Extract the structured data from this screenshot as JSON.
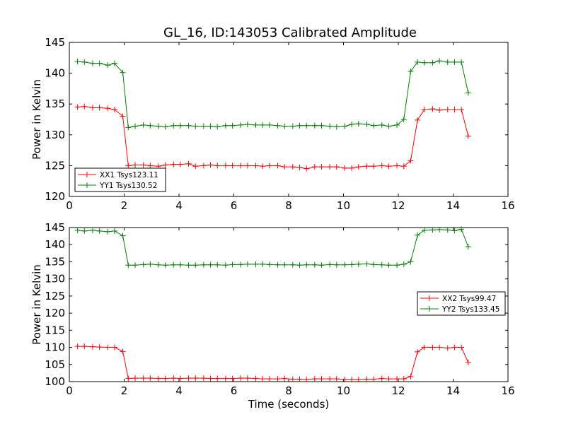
{
  "figure_title": "GL_16, ID:143053 Calibrated Amplitude",
  "chart_data": [
    {
      "type": "line",
      "id": "top",
      "ylabel": "Power in Kelvin",
      "xlabel": "",
      "xlim": [
        0,
        16
      ],
      "ylim": [
        120,
        145
      ],
      "xticks": [
        0,
        2,
        4,
        6,
        8,
        10,
        12,
        14,
        16
      ],
      "yticks": [
        120,
        125,
        130,
        135,
        140,
        145
      ],
      "legend": "lower-left",
      "x": [
        0.3,
        0.55,
        0.85,
        1.1,
        1.4,
        1.65,
        1.95,
        2.15,
        2.4,
        2.7,
        2.95,
        3.25,
        3.5,
        3.8,
        4.05,
        4.35,
        4.6,
        4.9,
        5.15,
        5.4,
        5.7,
        5.95,
        6.25,
        6.5,
        6.8,
        7.05,
        7.3,
        7.6,
        7.85,
        8.15,
        8.4,
        8.65,
        8.95,
        9.2,
        9.5,
        9.75,
        10.05,
        10.3,
        10.55,
        10.85,
        11.1,
        11.4,
        11.65,
        11.95,
        12.2,
        12.45,
        12.7,
        12.95,
        13.25,
        13.5,
        13.8,
        14.05,
        14.3,
        14.55
      ],
      "series": [
        {
          "name": "XX1 Tsys123.11",
          "color": "#ff0000",
          "values": [
            134.5,
            134.6,
            134.4,
            134.4,
            134.3,
            134.1,
            133.0,
            125.0,
            125.1,
            125.1,
            125.0,
            124.9,
            125.1,
            125.2,
            125.2,
            125.3,
            124.9,
            125.0,
            125.1,
            125.0,
            125.0,
            125.0,
            125.0,
            125.0,
            125.0,
            124.9,
            125.0,
            125.0,
            124.8,
            124.8,
            124.7,
            124.5,
            124.8,
            124.8,
            124.8,
            124.8,
            124.6,
            124.6,
            124.8,
            124.9,
            124.9,
            125.0,
            124.9,
            125.0,
            124.9,
            125.8,
            132.4,
            134.1,
            134.2,
            134.0,
            134.1,
            134.1,
            134.1,
            129.8
          ]
        },
        {
          "name": "YY1 Tsys130.52",
          "color": "#008000",
          "values": [
            141.9,
            141.8,
            141.6,
            141.6,
            141.3,
            141.6,
            140.1,
            131.2,
            131.4,
            131.6,
            131.5,
            131.4,
            131.3,
            131.5,
            131.5,
            131.5,
            131.4,
            131.4,
            131.4,
            131.3,
            131.5,
            131.5,
            131.6,
            131.7,
            131.6,
            131.6,
            131.6,
            131.5,
            131.4,
            131.4,
            131.5,
            131.5,
            131.5,
            131.5,
            131.4,
            131.3,
            131.4,
            131.7,
            131.8,
            131.7,
            131.5,
            131.6,
            131.4,
            131.6,
            132.5,
            140.3,
            141.8,
            141.7,
            141.7,
            142.0,
            141.8,
            141.8,
            141.8,
            136.8
          ]
        }
      ]
    },
    {
      "type": "line",
      "id": "bottom",
      "ylabel": "Power in Kelvin",
      "xlabel": "Time (seconds)",
      "xlim": [
        0,
        16
      ],
      "ylim": [
        100,
        145
      ],
      "xticks": [
        0,
        2,
        4,
        6,
        8,
        10,
        12,
        14,
        16
      ],
      "yticks": [
        100,
        105,
        110,
        115,
        120,
        125,
        130,
        135,
        140,
        145
      ],
      "legend": "center-right",
      "x": [
        0.3,
        0.55,
        0.85,
        1.1,
        1.4,
        1.65,
        1.95,
        2.15,
        2.4,
        2.7,
        2.95,
        3.25,
        3.5,
        3.8,
        4.05,
        4.35,
        4.6,
        4.9,
        5.15,
        5.4,
        5.7,
        5.95,
        6.25,
        6.5,
        6.8,
        7.05,
        7.3,
        7.6,
        7.85,
        8.15,
        8.4,
        8.65,
        8.95,
        9.2,
        9.5,
        9.75,
        10.05,
        10.3,
        10.55,
        10.85,
        11.1,
        11.4,
        11.65,
        11.95,
        12.2,
        12.45,
        12.7,
        12.95,
        13.25,
        13.5,
        13.8,
        14.05,
        14.3,
        14.55
      ],
      "series": [
        {
          "name": "XX2 Tsys99.47",
          "color": "#ff0000",
          "values": [
            110.3,
            110.3,
            110.2,
            110.1,
            110.0,
            110.0,
            108.8,
            100.9,
            101.0,
            101.0,
            101.0,
            100.9,
            100.9,
            101.0,
            100.9,
            101.0,
            101.0,
            101.0,
            100.9,
            100.9,
            100.9,
            100.9,
            101.0,
            101.0,
            100.9,
            100.8,
            100.8,
            100.8,
            100.9,
            100.7,
            100.7,
            100.6,
            100.8,
            100.8,
            100.8,
            100.8,
            100.6,
            100.6,
            100.6,
            100.7,
            100.7,
            100.9,
            100.8,
            100.8,
            100.8,
            101.5,
            108.7,
            110.0,
            110.0,
            110.0,
            109.8,
            110.0,
            110.0,
            105.6
          ]
        },
        {
          "name": "YY2 Tsys133.45",
          "color": "#008000",
          "values": [
            144.2,
            144.0,
            144.2,
            144.0,
            143.8,
            144.0,
            142.6,
            134.0,
            134.0,
            134.2,
            134.3,
            134.1,
            134.0,
            134.1,
            134.1,
            134.0,
            134.0,
            134.1,
            134.1,
            134.1,
            134.0,
            134.2,
            134.2,
            134.3,
            134.3,
            134.3,
            134.2,
            134.1,
            134.1,
            134.1,
            134.0,
            134.1,
            134.1,
            134.0,
            134.2,
            134.1,
            134.1,
            134.2,
            134.3,
            134.4,
            134.2,
            134.1,
            134.0,
            134.0,
            134.3,
            135.0,
            142.8,
            144.2,
            144.3,
            144.4,
            144.3,
            144.1,
            144.5,
            139.4
          ]
        }
      ]
    }
  ]
}
